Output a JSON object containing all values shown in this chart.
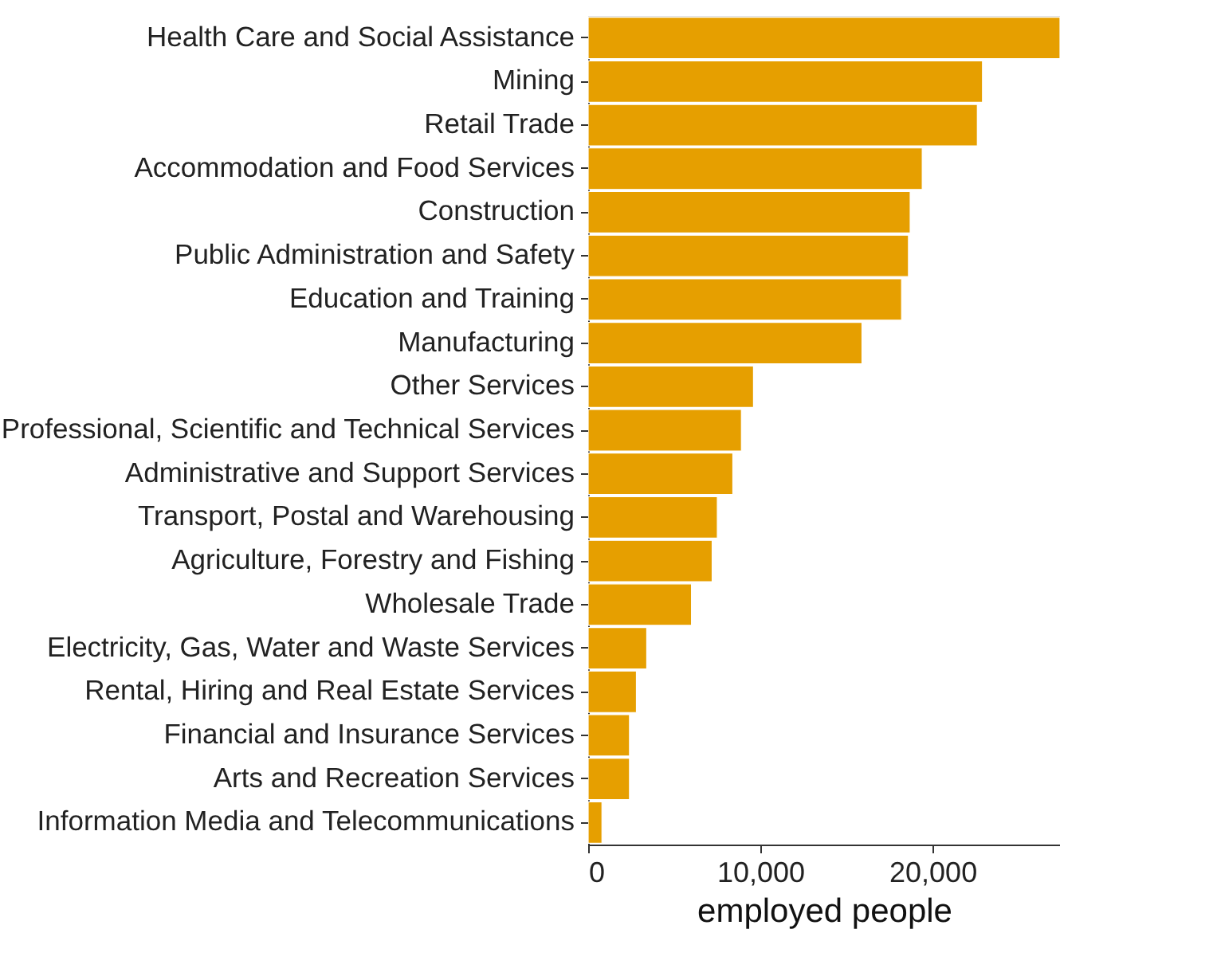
{
  "chart_data": {
    "type": "bar",
    "orientation": "horizontal",
    "xlabel": "employed people",
    "categories": [
      "Health Care and Social Assistance",
      "Mining",
      "Retail Trade",
      "Accommodation and Food Services",
      "Construction",
      "Public Administration and Safety",
      "Education and Training",
      "Manufacturing",
      "Other Services",
      "Professional, Scientific and Technical Services",
      "Administrative and Support Services",
      "Transport, Postal and Warehousing",
      "Agriculture, Forestry and Fishing",
      "Wholesale Trade",
      "Electricity, Gas, Water and Waste Services",
      "Rental, Hiring and Real Estate Services",
      "Financial and Insurance Services",
      "Arts and Recreation Services",
      "Information Media and Telecommunications"
    ],
    "values": [
      27400,
      22900,
      22600,
      19400,
      18700,
      18600,
      18200,
      15900,
      9600,
      8900,
      8400,
      7500,
      7200,
      6000,
      3400,
      2800,
      2400,
      2400,
      800
    ],
    "color": "#e69f00",
    "xlim": [
      0,
      27400
    ],
    "xticks": [
      0,
      {
        "value": 10000,
        "label": "10,000"
      },
      {
        "value": 20000,
        "label": "20,000"
      }
    ],
    "grid": false
  }
}
